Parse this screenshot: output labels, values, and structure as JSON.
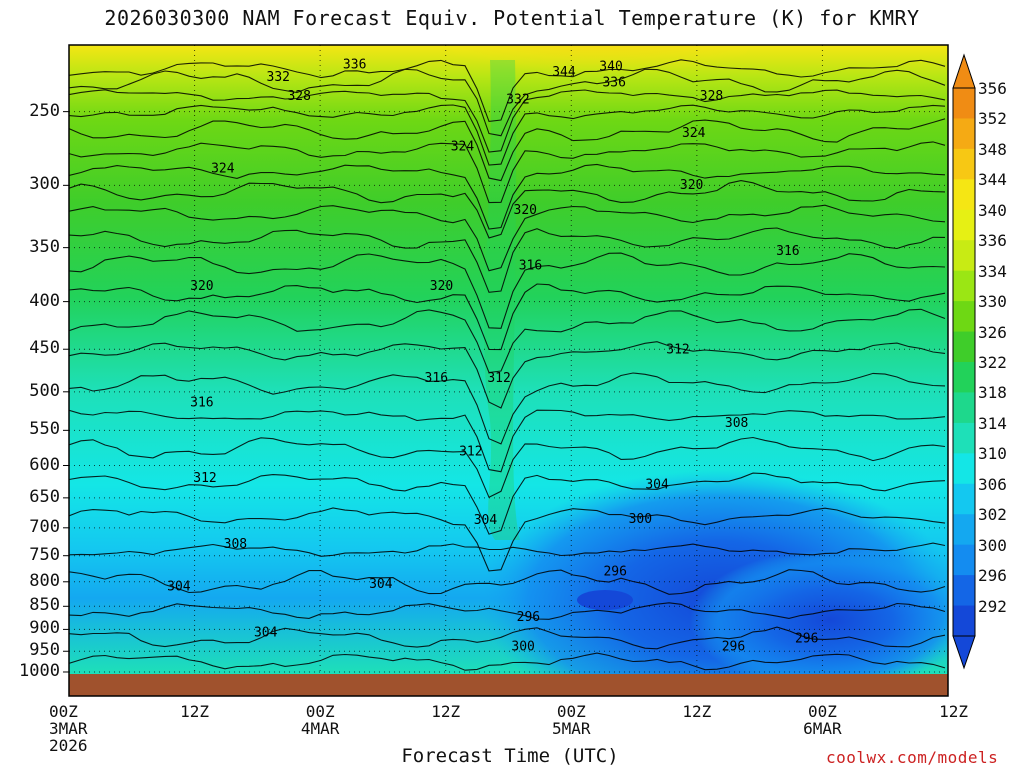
{
  "title": "2026030300 NAM Forecast Equiv. Potential Temperature (K) for KMRY",
  "xaxis_title": "Forecast Time (UTC)",
  "credit": "coolwx.com/models",
  "chart_data": {
    "type": "contour",
    "variable": "Equivalent Potential Temperature (K)",
    "y_axis": {
      "scale": "pressure (inverted)",
      "ticks": [
        250,
        300,
        350,
        400,
        450,
        500,
        550,
        600,
        650,
        700,
        750,
        800,
        850,
        900,
        950,
        1000
      ]
    },
    "x_axis": {
      "ticks": [
        {
          "line1": "00Z",
          "line2": "3MAR",
          "line3": "2026"
        },
        {
          "line1": "12Z",
          "line2": "",
          "line3": ""
        },
        {
          "line1": "00Z",
          "line2": "4MAR",
          "line3": ""
        },
        {
          "line1": "12Z",
          "line2": "",
          "line3": ""
        },
        {
          "line1": "00Z",
          "line2": "5MAR",
          "line3": ""
        },
        {
          "line1": "12Z",
          "line2": "",
          "line3": ""
        },
        {
          "line1": "00Z",
          "line2": "6MAR",
          "line3": ""
        },
        {
          "line1": "12Z",
          "line2": "",
          "line3": ""
        }
      ]
    },
    "colorbar": {
      "levels": [
        356,
        352,
        348,
        344,
        340,
        336,
        334,
        330,
        326,
        322,
        318,
        314,
        310,
        306,
        302,
        300,
        296,
        292
      ],
      "colors": [
        "#f08c14",
        "#f5aa14",
        "#f7c814",
        "#f5e614",
        "#e6f014",
        "#c8eb14",
        "#9be614",
        "#6ed814",
        "#3fcd2a",
        "#22d25a",
        "#1ed88c",
        "#1ee0b8",
        "#14e6e6",
        "#14c8f0",
        "#14a8f0",
        "#148cf0",
        "#1466e6",
        "#1448d8"
      ]
    },
    "contour_labels": [
      {
        "value": "336",
        "t": 27.3,
        "p": 222
      },
      {
        "value": "332",
        "t": 20.0,
        "p": 229
      },
      {
        "value": "328",
        "t": 22.0,
        "p": 240
      },
      {
        "value": "324",
        "t": 14.7,
        "p": 287
      },
      {
        "value": "320",
        "t": 12.7,
        "p": 384
      },
      {
        "value": "316",
        "t": 12.7,
        "p": 512
      },
      {
        "value": "312",
        "t": 13.0,
        "p": 617
      },
      {
        "value": "308",
        "t": 15.9,
        "p": 727
      },
      {
        "value": "304",
        "t": 10.5,
        "p": 807
      },
      {
        "value": "304",
        "t": 18.8,
        "p": 905
      },
      {
        "value": "304",
        "t": 29.8,
        "p": 802
      },
      {
        "value": "324",
        "t": 37.6,
        "p": 272
      },
      {
        "value": "320",
        "t": 35.6,
        "p": 384
      },
      {
        "value": "316",
        "t": 35.1,
        "p": 482
      },
      {
        "value": "312",
        "t": 38.4,
        "p": 578
      },
      {
        "value": "312",
        "t": 41.1,
        "p": 482
      },
      {
        "value": "320",
        "t": 43.6,
        "p": 318
      },
      {
        "value": "316",
        "t": 44.1,
        "p": 365
      },
      {
        "value": "332",
        "t": 42.9,
        "p": 242
      },
      {
        "value": "344",
        "t": 47.3,
        "p": 226
      },
      {
        "value": "340",
        "t": 51.8,
        "p": 223
      },
      {
        "value": "336",
        "t": 52.1,
        "p": 232
      },
      {
        "value": "304",
        "t": 39.8,
        "p": 685
      },
      {
        "value": "296",
        "t": 43.9,
        "p": 871
      },
      {
        "value": "300",
        "t": 43.4,
        "p": 937
      },
      {
        "value": "296",
        "t": 52.2,
        "p": 778
      },
      {
        "value": "300",
        "t": 54.6,
        "p": 683
      },
      {
        "value": "304",
        "t": 56.2,
        "p": 627
      },
      {
        "value": "328",
        "t": 61.4,
        "p": 240
      },
      {
        "value": "324",
        "t": 59.7,
        "p": 263
      },
      {
        "value": "320",
        "t": 59.5,
        "p": 299
      },
      {
        "value": "316",
        "t": 68.7,
        "p": 352
      },
      {
        "value": "312",
        "t": 58.2,
        "p": 449
      },
      {
        "value": "308",
        "t": 63.8,
        "p": 539
      },
      {
        "value": "296",
        "t": 63.5,
        "p": 937
      },
      {
        "value": "296",
        "t": 70.5,
        "p": 918
      }
    ]
  }
}
